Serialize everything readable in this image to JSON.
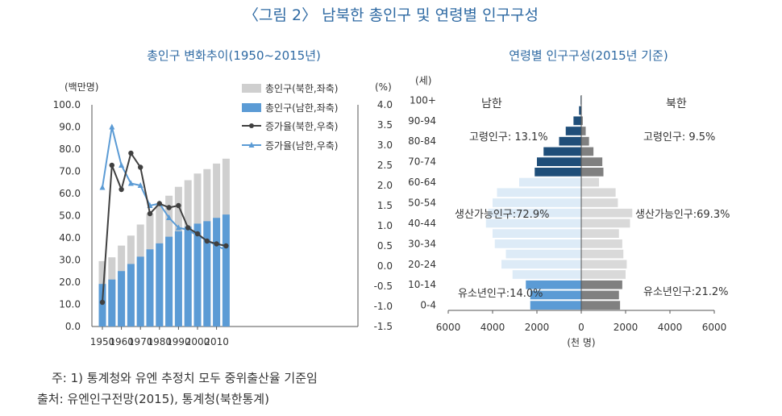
{
  "title": "〈그림 2〉 남북한 총인구 및 연령별 인구구성",
  "notes": {
    "note1": "주: 1) 통계청와 유엔 추정치 모두 중위출산율 기준임",
    "source": "출처: 유엔인구전망(2015), 통계청(북한통계)"
  },
  "colors": {
    "title_blue": "#2f6aa3",
    "south_bar": "#5b9bd5",
    "north_bar": "#cfcfcf",
    "north_line": "#404040",
    "south_line": "#5b9bd5",
    "south_dark": "#1f4e79",
    "south_mid": "#5b9bd5",
    "south_light": "#ddebf7",
    "north_dark": "#808080",
    "north_light": "#d9d9d9"
  },
  "chart_data": [
    {
      "type": "bar",
      "title": "총인구 변화추이(1950~2015년)",
      "left_unit": "(백만명)",
      "right_unit": "(%)",
      "x": [
        1950,
        1955,
        1960,
        1965,
        1970,
        1975,
        1980,
        1985,
        1990,
        1995,
        2000,
        2005,
        2010,
        2015
      ],
      "x_ticks": [
        "1950",
        "1960",
        "1970",
        "1980",
        "1990",
        "2000",
        "2010"
      ],
      "y_left_ticks": [
        "100.0",
        "90.0",
        "80.0",
        "70.0",
        "60.0",
        "50.0",
        "40.0",
        "30.0",
        "20.0",
        "10.0",
        "0.0"
      ],
      "y_right_ticks": [
        "4.0",
        "3.5",
        "3.0",
        "2.5",
        "2.0",
        "1.5",
        "1.0",
        "0.5",
        "0.0",
        "-0.5",
        "-1.0",
        "-1.5"
      ],
      "ylim_left": [
        0,
        100
      ],
      "ylim_right": [
        -1.5,
        4.0
      ],
      "series": [
        {
          "name": "총인구(북한,좌축)",
          "kind": "bar-total",
          "values": [
            29.5,
            31.2,
            36.5,
            41.0,
            46.0,
            51.0,
            55.0,
            59.0,
            63.0,
            66.0,
            69.0,
            71.0,
            73.5,
            75.7
          ]
        },
        {
          "name": "총인구(남한,좌축)",
          "kind": "bar",
          "values": [
            19.2,
            21.2,
            25.0,
            28.2,
            31.5,
            34.8,
            37.5,
            40.5,
            43.0,
            45.0,
            46.4,
            47.5,
            49.0,
            50.5
          ]
        },
        {
          "name": "증가율(북한,우축)",
          "kind": "line",
          "values": [
            -0.9,
            2.5,
            1.9,
            2.8,
            2.45,
            1.3,
            1.55,
            1.45,
            1.5,
            0.95,
            0.8,
            0.62,
            0.55,
            0.5
          ]
        },
        {
          "name": "증가율(남한,우축)",
          "kind": "line",
          "values": [
            1.95,
            3.45,
            2.5,
            2.05,
            2.0,
            1.5,
            1.55,
            1.2,
            0.95,
            0.9,
            0.75,
            0.65,
            0.5,
            0.4
          ]
        }
      ]
    },
    {
      "type": "bar",
      "title": "연령별 인구구성(2015년 기준)",
      "age_unit": "(세)",
      "x_unit": "(천 명)",
      "left_label": "남한",
      "right_label": "북한",
      "age_groups": [
        "0-4",
        "5-9",
        "10-14",
        "15-19",
        "20-24",
        "25-29",
        "30-34",
        "35-39",
        "40-44",
        "45-49",
        "50-54",
        "55-59",
        "60-64",
        "65-69",
        "70-74",
        "75-79",
        "80-84",
        "85-89",
        "90-94",
        "95-99",
        "100+"
      ],
      "y_tick_labels": [
        "0-4",
        "10-14",
        "20-24",
        "30-34",
        "40-44",
        "50-54",
        "60-64",
        "70-74",
        "80-84",
        "90-94",
        "100+"
      ],
      "x_ticks": [
        "6000",
        "4000",
        "2000",
        "0",
        "2000",
        "4000",
        "6000"
      ],
      "xlim": [
        -6000,
        6000
      ],
      "south_values": [
        2300,
        2300,
        2500,
        3100,
        3600,
        3400,
        3900,
        4000,
        4300,
        4200,
        4000,
        3800,
        2800,
        2100,
        2000,
        1700,
        1000,
        700,
        350,
        100,
        30
      ],
      "north_values": [
        1750,
        1700,
        1850,
        2000,
        2050,
        1900,
        1850,
        1700,
        2200,
        2300,
        1650,
        1550,
        800,
        1000,
        950,
        550,
        350,
        200,
        70,
        20,
        5
      ],
      "annotations": {
        "south_old": "고령인구: 13.1%",
        "north_old": "고령인구: 9.5%",
        "south_working": "생산가능인구:72.9%",
        "north_working": "생산가능인구:69.3%",
        "south_young": "유소년인구:14.0%",
        "north_young": "유소년인구:21.2%"
      }
    }
  ]
}
